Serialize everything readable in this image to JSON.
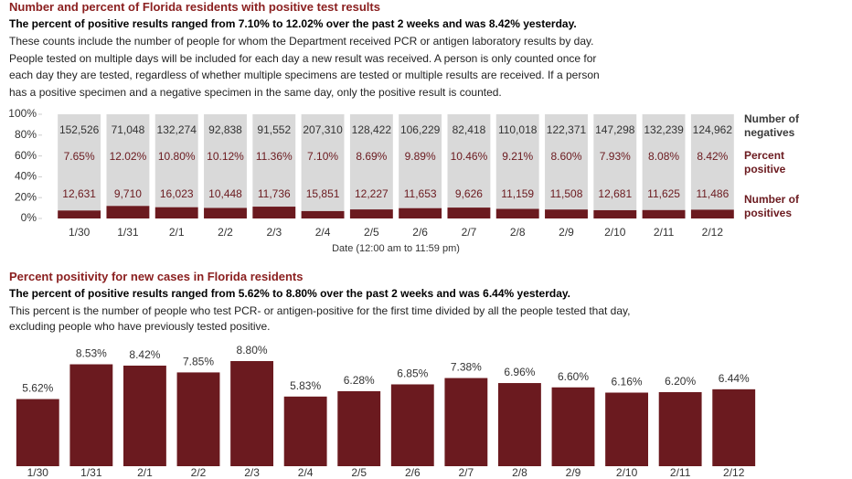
{
  "chart_data": [
    {
      "type": "stacked-percent-bar",
      "title": "Number and percent of Florida residents with positive test results",
      "subtitle": "The percent of positive results ranged from 7.10% to 12.02% over the past 2 weeks and was 8.42% yesterday.",
      "description": [
        "These counts include the number of people for whom the Department received PCR or antigen laboratory results by day.",
        "People tested on multiple days will be included for each day a new result was received. A person is only counted once for",
        "each day they are tested, regardless of whether multiple specimens are tested or multiple results are received. If a person",
        "has a positive specimen and a negative specimen in the same day, only the positive result is counted."
      ],
      "x_label": "Date (12:00 am to 11:59 pm)",
      "categories": [
        "1/30",
        "1/31",
        "2/1",
        "2/2",
        "2/3",
        "2/4",
        "2/5",
        "2/6",
        "2/7",
        "2/8",
        "2/9",
        "2/10",
        "2/11",
        "2/12"
      ],
      "ylim": [
        0,
        100
      ],
      "yticks": [
        {
          "value": 0,
          "label": "0%"
        },
        {
          "value": 20,
          "label": "20%"
        },
        {
          "value": 40,
          "label": "40%"
        },
        {
          "value": 60,
          "label": "60%"
        },
        {
          "value": 80,
          "label": "80%"
        },
        {
          "value": 100,
          "label": "100%"
        }
      ],
      "series": [
        {
          "name": "Number of negatives",
          "color": "#d9d9d9",
          "values": [
            152526,
            71048,
            132274,
            92838,
            91552,
            207310,
            128422,
            106229,
            82418,
            110018,
            122371,
            147298,
            132239,
            124962
          ],
          "value_labels": [
            "152,526",
            "71,048",
            "132,274",
            "92,838",
            "91,552",
            "207,310",
            "128,422",
            "106,229",
            "82,418",
            "110,018",
            "122,371",
            "147,298",
            "132,239",
            "124,962"
          ]
        },
        {
          "name": "Percent positive",
          "color": "#6b1a1f",
          "values": [
            7.65,
            12.02,
            10.8,
            10.12,
            11.36,
            7.1,
            8.69,
            9.89,
            10.46,
            9.21,
            8.6,
            7.93,
            8.08,
            8.42
          ],
          "value_labels": [
            "7.65%",
            "12.02%",
            "10.80%",
            "10.12%",
            "11.36%",
            "7.10%",
            "8.69%",
            "9.89%",
            "10.46%",
            "9.21%",
            "8.60%",
            "7.93%",
            "8.08%",
            "8.42%"
          ]
        },
        {
          "name": "Number of positives",
          "color": "#6b1a1f",
          "values": [
            12631,
            9710,
            16023,
            10448,
            11736,
            15851,
            12227,
            11653,
            9626,
            11159,
            11508,
            12681,
            11625,
            11486
          ],
          "value_labels": [
            "12,631",
            "9,710",
            "16,023",
            "10,448",
            "11,736",
            "15,851",
            "12,227",
            "11,653",
            "9,626",
            "11,159",
            "11,508",
            "12,681",
            "11,625",
            "11,486"
          ]
        }
      ]
    },
    {
      "type": "bar",
      "title": "Percent positivity for new cases in Florida residents",
      "subtitle": "The percent of positive results ranged from 5.62% to 8.80% over the past 2 weeks and was 6.44% yesterday.",
      "description": [
        "This percent is the number of people who test PCR- or antigen-positive for the first time divided by all the people tested that day,",
        "excluding people who have previously tested positive."
      ],
      "categories": [
        "1/30",
        "1/31",
        "2/1",
        "2/2",
        "2/3",
        "2/4",
        "2/5",
        "2/6",
        "2/7",
        "2/8",
        "2/9",
        "2/10",
        "2/11",
        "2/12"
      ],
      "color": "#6b1a1f",
      "values": [
        5.62,
        8.53,
        8.42,
        7.85,
        8.8,
        5.83,
        6.28,
        6.85,
        7.38,
        6.96,
        6.6,
        6.16,
        6.2,
        6.44
      ],
      "value_labels": [
        "5.62%",
        "8.53%",
        "8.42%",
        "7.85%",
        "8.80%",
        "5.83%",
        "6.28%",
        "6.85%",
        "7.38%",
        "6.96%",
        "6.60%",
        "6.16%",
        "6.20%",
        "6.44%"
      ]
    }
  ]
}
